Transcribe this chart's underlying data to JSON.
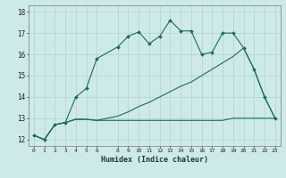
{
  "xlabel": "Humidex (Indice chaleur)",
  "background_color": "#ceeae8",
  "grid_color": "#aed4d0",
  "line_color": "#1a6b64",
  "xlim": [
    -0.5,
    23.5
  ],
  "ylim": [
    11.7,
    18.3
  ],
  "xticks": [
    0,
    1,
    2,
    3,
    4,
    5,
    6,
    8,
    9,
    10,
    11,
    12,
    13,
    14,
    15,
    16,
    17,
    18,
    19,
    20,
    21,
    22,
    23
  ],
  "yticks": [
    12,
    13,
    14,
    15,
    16,
    17,
    18
  ],
  "series1_x": [
    0,
    1,
    2,
    3,
    4,
    5,
    6,
    8,
    9,
    10,
    11,
    12,
    13,
    14,
    15,
    16,
    17,
    18,
    19,
    20,
    21,
    22,
    23
  ],
  "series1_y": [
    12.2,
    12.0,
    12.7,
    12.8,
    14.0,
    14.4,
    15.8,
    16.35,
    16.85,
    17.05,
    16.5,
    16.85,
    17.6,
    17.1,
    17.1,
    16.0,
    16.1,
    17.0,
    17.0,
    16.3,
    15.3,
    14.0,
    13.0
  ],
  "series2_x": [
    0,
    1,
    2,
    3,
    4,
    5,
    6,
    8,
    9,
    10,
    11,
    12,
    13,
    14,
    15,
    16,
    17,
    18,
    19,
    20,
    21,
    22,
    23
  ],
  "series2_y": [
    12.2,
    12.0,
    12.7,
    12.8,
    12.95,
    12.95,
    12.9,
    12.9,
    12.9,
    12.9,
    12.9,
    12.9,
    12.9,
    12.9,
    12.9,
    12.9,
    12.9,
    12.9,
    13.0,
    13.0,
    13.0,
    13.0,
    13.0
  ],
  "series3_x": [
    0,
    1,
    2,
    3,
    4,
    5,
    6,
    8,
    9,
    10,
    11,
    12,
    13,
    14,
    15,
    16,
    17,
    18,
    19,
    20,
    21,
    22,
    23
  ],
  "series3_y": [
    12.2,
    12.0,
    12.7,
    12.8,
    12.95,
    12.95,
    12.9,
    13.1,
    13.3,
    13.55,
    13.75,
    14.0,
    14.25,
    14.5,
    14.7,
    15.0,
    15.3,
    15.6,
    15.9,
    16.3,
    15.3,
    14.0,
    13.0
  ]
}
